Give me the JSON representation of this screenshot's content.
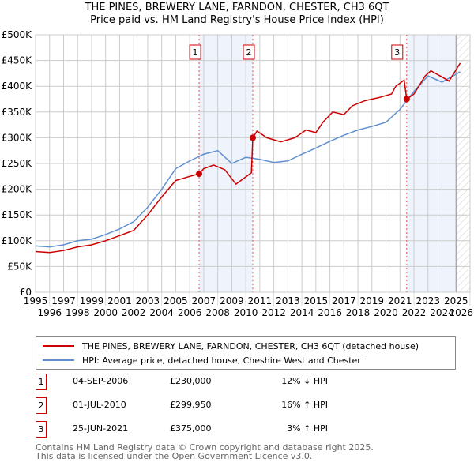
{
  "title": "THE PINES, BREWERY LANE, FARNDON, CHESTER, CH3 6QT",
  "subtitle": "Price paid vs. HM Land Registry's House Price Index (HPI)",
  "colors": {
    "property": "#cc0000",
    "hpi": "#6090d0",
    "shade": "#eef3fc"
  },
  "chart_data": {
    "type": "line",
    "xlim": [
      1995,
      2026
    ],
    "ylim": [
      0,
      500000
    ],
    "yticks": [
      0,
      50000,
      100000,
      150000,
      200000,
      250000,
      300000,
      350000,
      400000,
      450000,
      500000
    ],
    "ytick_labels": [
      "£0",
      "£50K",
      "£100K",
      "£150K",
      "£200K",
      "£250K",
      "£300K",
      "£350K",
      "£400K",
      "£450K",
      "£500K"
    ],
    "xticks": [
      "1995",
      "1996",
      "1997",
      "1998",
      "1999",
      "2000",
      "2001",
      "2002",
      "2003",
      "2004",
      "2005",
      "2006",
      "2007",
      "2008",
      "2009",
      "2010",
      "2011",
      "2012",
      "2013",
      "2014",
      "2015",
      "2016",
      "2017",
      "2018",
      "2019",
      "2020",
      "2021",
      "2022",
      "2023",
      "2024",
      "2025",
      "2026"
    ],
    "grid": true,
    "series": [
      {
        "name": "THE PINES, BREWERY LANE, FARNDON, CHESTER, CH3 6QT (detached house)",
        "color": "#cc0000",
        "x": [
          1995,
          1996,
          1997,
          1998,
          1999,
          2000,
          2001,
          2002,
          2003,
          2004,
          2005,
          2006,
          2006.67,
          2007,
          2007.7,
          2008.5,
          2009.3,
          2010.4,
          2010.5,
          2010.8,
          2011.5,
          2012.5,
          2013.5,
          2014.3,
          2015,
          2015.5,
          2016.2,
          2017,
          2017.6,
          2018.5,
          2019.5,
          2020.4,
          2020.7,
          2021.3,
          2021.48,
          2022,
          2022.8,
          2023.2,
          2024,
          2024.5,
          2025.3
        ],
        "y": [
          79000,
          77000,
          81000,
          88000,
          92000,
          100000,
          110000,
          120000,
          150000,
          185000,
          217000,
          225000,
          230000,
          240000,
          247000,
          238000,
          210000,
          232000,
          299950,
          313000,
          300000,
          292000,
          300000,
          315000,
          310000,
          330000,
          350000,
          345000,
          362000,
          372000,
          378000,
          385000,
          400000,
          412000,
          375000,
          385000,
          420000,
          430000,
          418000,
          410000,
          445000
        ]
      },
      {
        "name": "HPI: Average price, detached house, Cheshire West and Chester",
        "color": "#6090d0",
        "x": [
          1995,
          1996,
          1997,
          1998,
          1999,
          2000,
          2001,
          2002,
          2003,
          2004,
          2005,
          2006,
          2007,
          2008,
          2009,
          2010,
          2011,
          2012,
          2013,
          2014,
          2015,
          2016,
          2017,
          2018,
          2019,
          2020,
          2021,
          2022,
          2023,
          2024,
          2025.3
        ],
        "y": [
          90000,
          88000,
          92000,
          100000,
          103000,
          112000,
          123000,
          137000,
          165000,
          200000,
          240000,
          255000,
          268000,
          275000,
          250000,
          262000,
          258000,
          252000,
          255000,
          268000,
          280000,
          293000,
          305000,
          315000,
          322000,
          330000,
          355000,
          390000,
          420000,
          408000,
          428000
        ]
      }
    ],
    "sales": [
      {
        "label": "1",
        "x": 2006.67,
        "y": 230000,
        "date": "04-SEP-2006",
        "price": "£230,000",
        "hpi": "12% ↓ HPI"
      },
      {
        "label": "2",
        "x": 2010.5,
        "y": 299950,
        "date": "01-JUL-2010",
        "price": "£299,950",
        "hpi": "16% ↑ HPI"
      },
      {
        "label": "3",
        "x": 2021.48,
        "y": 375000,
        "date": "25-JUN-2021",
        "price": "£375,000",
        "hpi": "3% ↑ HPI"
      }
    ],
    "shaded": [
      [
        2006.67,
        2010.5
      ],
      [
        2021.48,
        2025.0
      ]
    ],
    "forecast_hatched": [
      2025.0,
      2026
    ]
  },
  "legend": {
    "property": "THE PINES, BREWERY LANE, FARNDON, CHESTER, CH3 6QT (detached house)",
    "hpi": "HPI: Average price, detached house, Cheshire West and Chester"
  },
  "footer": [
    "Contains HM Land Registry data © Crown copyright and database right 2025.",
    "This data is licensed under the Open Government Licence v3.0."
  ]
}
